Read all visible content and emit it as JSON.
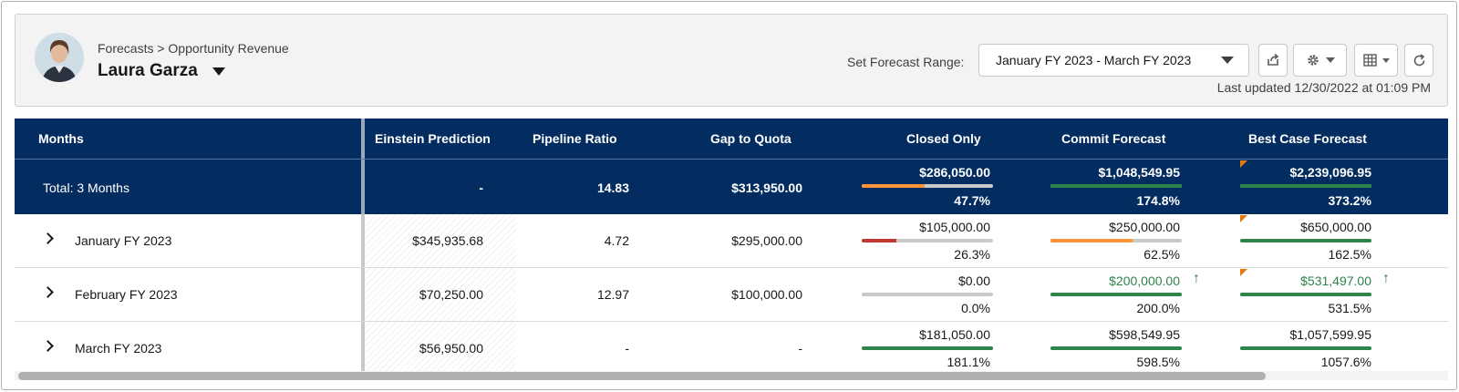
{
  "header": {
    "breadcrumb": "Forecasts > Opportunity Revenue",
    "user_name": "Laura Garza",
    "range_label": "Set Forecast Range:",
    "range_value": "January FY 2023 - March FY 2023",
    "last_updated": "Last updated 12/30/2022 at 01:09 PM",
    "tool_icons": [
      "share-icon",
      "gear-icon",
      "table-columns-icon",
      "refresh-icon"
    ]
  },
  "columns": {
    "months": "Months",
    "einstein": "Einstein Prediction",
    "pipeline": "Pipeline Ratio",
    "gap": "Gap to Quota",
    "closed": "Closed Only",
    "commit": "Commit Forecast",
    "best": "Best Case Forecast"
  },
  "colors": {
    "navy": "#032d60",
    "orange": "#fe9339",
    "red": "#c23934",
    "green": "#2e844a",
    "gray": "#c9c9c9",
    "flag": "#e4790d"
  },
  "total": {
    "label": "Total: 3 Months",
    "einstein": "-",
    "pipeline": "14.83",
    "gap": "$313,950.00",
    "closed": {
      "amount": "$286,050.00",
      "pct": "47.7%",
      "fill": 0.477,
      "color": "#fe9339"
    },
    "commit": {
      "amount": "$1,048,549.95",
      "pct": "174.8%",
      "fill": 1.0,
      "color": "#2e844a"
    },
    "best": {
      "amount": "$2,239,096.95",
      "pct": "373.2%",
      "fill": 1.0,
      "color": "#2e844a",
      "flag": true
    }
  },
  "rows": [
    {
      "label": "January FY 2023",
      "einstein": "$345,935.68",
      "pipeline": "4.72",
      "gap": "$295,000.00",
      "closed": {
        "amount": "$105,000.00",
        "pct": "26.3%",
        "fill": 0.263,
        "color": "#c23934"
      },
      "commit": {
        "amount": "$250,000.00",
        "pct": "62.5%",
        "fill": 0.625,
        "color": "#fe9339",
        "flag": false
      },
      "best": {
        "amount": "$650,000.00",
        "pct": "162.5%",
        "fill": 1.0,
        "color": "#2e844a",
        "flag": true
      }
    },
    {
      "label": "February FY 2023",
      "einstein": "$70,250.00",
      "pipeline": "12.97",
      "gap": "$100,000.00",
      "closed": {
        "amount": "$0.00",
        "pct": "0.0%",
        "fill": 0.0,
        "color": "#c23934"
      },
      "commit": {
        "amount": "$200,000.00",
        "pct": "200.0%",
        "fill": 1.0,
        "color": "#2e844a",
        "flag": false,
        "up": true
      },
      "best": {
        "amount": "$531,497.00",
        "pct": "531.5%",
        "fill": 1.0,
        "color": "#2e844a",
        "flag": true,
        "up": true
      }
    },
    {
      "label": "March FY 2023",
      "einstein": "$56,950.00",
      "pipeline": "-",
      "gap": "-",
      "closed": {
        "amount": "$181,050.00",
        "pct": "181.1%",
        "fill": 1.0,
        "color": "#2e844a"
      },
      "commit": {
        "amount": "$598,549.95",
        "pct": "598.5%",
        "fill": 1.0,
        "color": "#2e844a",
        "flag": false
      },
      "best": {
        "amount": "$1,057,599.95",
        "pct": "1057.6%",
        "fill": 1.0,
        "color": "#2e844a",
        "flag": false
      }
    }
  ]
}
